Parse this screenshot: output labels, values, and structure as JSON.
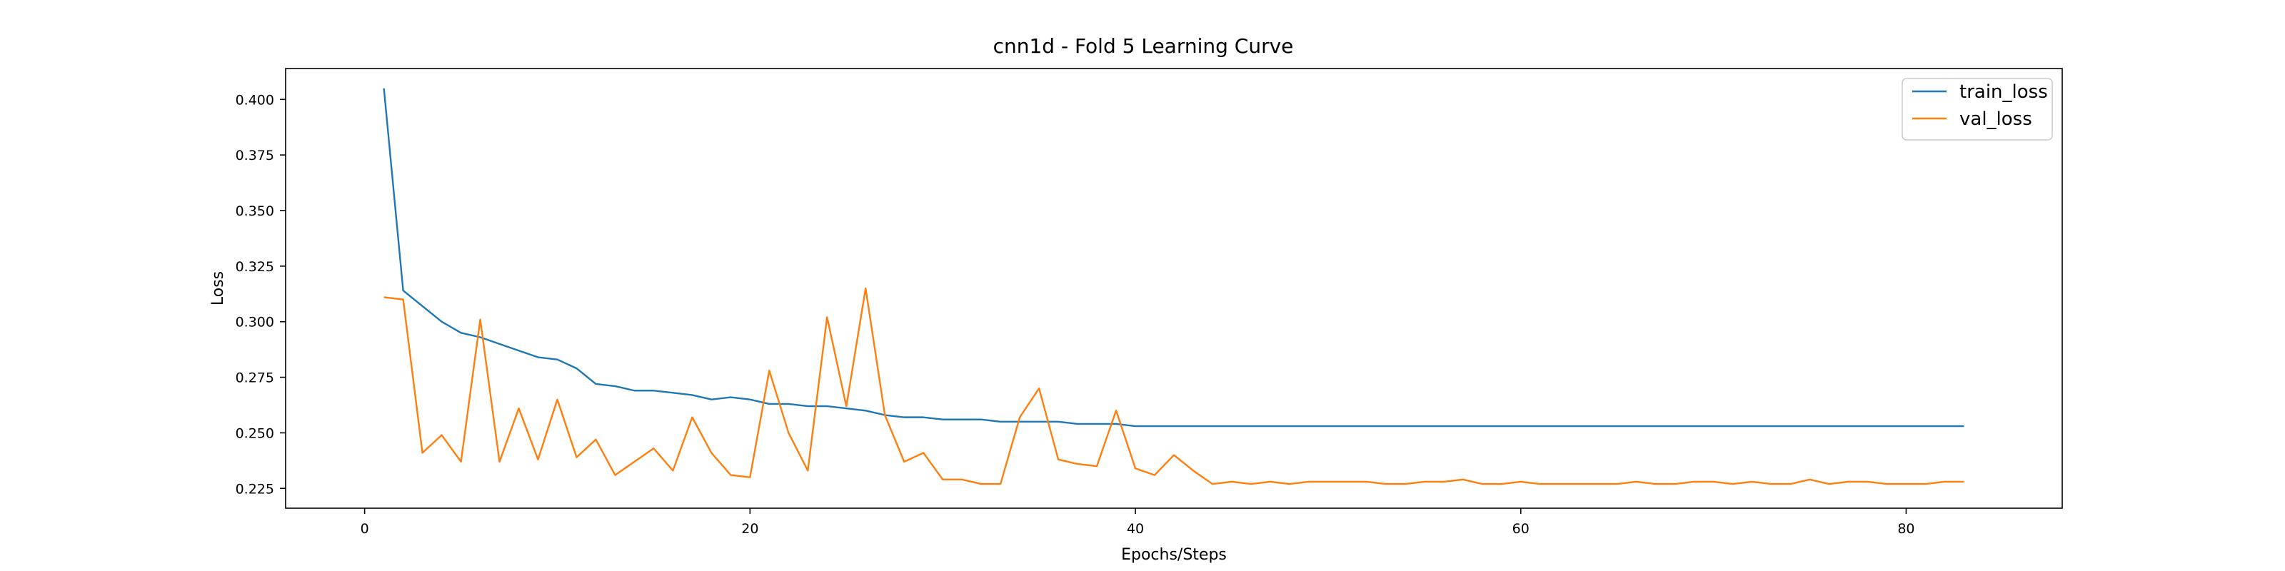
{
  "chart_data": {
    "type": "line",
    "title": "cnn1d - Fold 5 Learning Curve",
    "xlabel": "Epochs/Steps",
    "ylabel": "Loss",
    "xlim": [
      -4.1,
      88.1
    ],
    "ylim": [
      0.2161,
      0.4139
    ],
    "xticks": [
      0,
      20,
      40,
      60,
      80
    ],
    "yticks": [
      0.225,
      0.25,
      0.275,
      0.3,
      0.325,
      0.35,
      0.375,
      0.4
    ],
    "ytick_labels": [
      "0.225",
      "0.250",
      "0.275",
      "0.300",
      "0.325",
      "0.350",
      "0.375",
      "0.400"
    ],
    "grid": false,
    "legend_position": "top-right",
    "x": [
      1,
      2,
      3,
      4,
      5,
      6,
      7,
      8,
      9,
      10,
      11,
      12,
      13,
      14,
      15,
      16,
      17,
      18,
      19,
      20,
      21,
      22,
      23,
      24,
      25,
      26,
      27,
      28,
      29,
      30,
      31,
      32,
      33,
      34,
      35,
      36,
      37,
      38,
      39,
      40,
      41,
      42,
      43,
      44,
      45,
      46,
      47,
      48,
      49,
      50,
      51,
      52,
      53,
      54,
      55,
      56,
      57,
      58,
      59,
      60,
      61,
      62,
      63,
      64,
      65,
      66,
      67,
      68,
      69,
      70,
      71,
      72,
      73,
      74,
      75,
      76,
      77,
      78,
      79,
      80,
      81,
      82,
      83
    ],
    "series": [
      {
        "name": "train_loss",
        "color": "#1f77b4",
        "values": [
          0.405,
          0.314,
          0.307,
          0.3,
          0.295,
          0.293,
          0.29,
          0.287,
          0.284,
          0.283,
          0.279,
          0.272,
          0.271,
          0.269,
          0.269,
          0.268,
          0.267,
          0.265,
          0.266,
          0.265,
          0.263,
          0.263,
          0.262,
          0.262,
          0.261,
          0.26,
          0.258,
          0.257,
          0.257,
          0.256,
          0.256,
          0.256,
          0.255,
          0.255,
          0.255,
          0.255,
          0.254,
          0.254,
          0.254,
          0.253,
          0.253,
          0.253,
          0.253,
          0.253,
          0.253,
          0.253,
          0.253,
          0.253,
          0.253,
          0.253,
          0.253,
          0.253,
          0.253,
          0.253,
          0.253,
          0.253,
          0.253,
          0.253,
          0.253,
          0.253,
          0.253,
          0.253,
          0.253,
          0.253,
          0.253,
          0.253,
          0.253,
          0.253,
          0.253,
          0.253,
          0.253,
          0.253,
          0.253,
          0.253,
          0.253,
          0.253,
          0.253,
          0.253,
          0.253,
          0.253,
          0.253,
          0.253,
          0.253
        ]
      },
      {
        "name": "val_loss",
        "color": "#ff7f0e",
        "values": [
          0.311,
          0.31,
          0.241,
          0.249,
          0.237,
          0.301,
          0.237,
          0.261,
          0.238,
          0.265,
          0.239,
          0.247,
          0.231,
          0.237,
          0.243,
          0.233,
          0.257,
          0.241,
          0.231,
          0.23,
          0.278,
          0.25,
          0.233,
          0.302,
          0.262,
          0.315,
          0.258,
          0.237,
          0.241,
          0.229,
          0.229,
          0.227,
          0.227,
          0.257,
          0.27,
          0.238,
          0.236,
          0.235,
          0.26,
          0.234,
          0.231,
          0.24,
          0.233,
          0.227,
          0.228,
          0.227,
          0.228,
          0.227,
          0.228,
          0.228,
          0.228,
          0.228,
          0.227,
          0.227,
          0.228,
          0.228,
          0.229,
          0.227,
          0.227,
          0.228,
          0.227,
          0.227,
          0.227,
          0.227,
          0.227,
          0.228,
          0.227,
          0.227,
          0.228,
          0.228,
          0.227,
          0.228,
          0.227,
          0.227,
          0.229,
          0.227,
          0.228,
          0.228,
          0.227,
          0.227,
          0.227,
          0.228,
          0.228
        ]
      }
    ]
  }
}
